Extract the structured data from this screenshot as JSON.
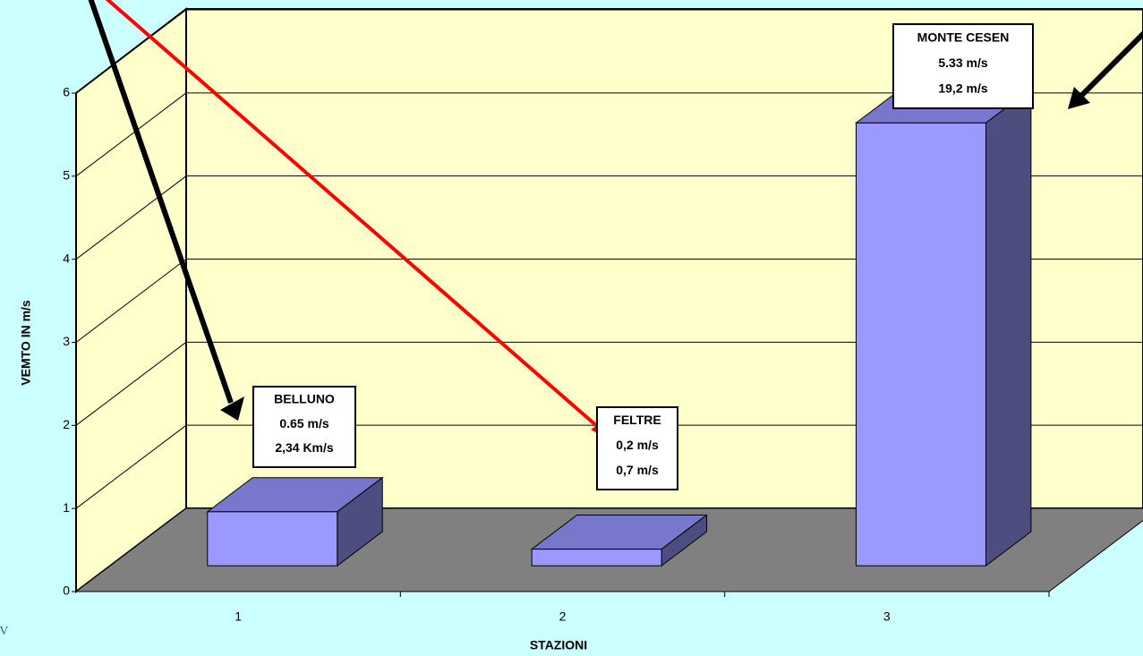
{
  "chart_data": {
    "type": "bar3d",
    "categories": [
      "1",
      "2",
      "3"
    ],
    "values": [
      0.65,
      0.2,
      5.33
    ],
    "color": "#9999ff",
    "ylim": [
      0,
      6
    ],
    "yticks": [
      0,
      1,
      2,
      3,
      4,
      5,
      6
    ],
    "grid": true,
    "y_label": "VEMTO IN m/s",
    "x_label": "STAZIONI",
    "annotations": [
      {
        "lines": [
          "BELLUNO",
          "0.65 m/s",
          "2,34 Km/s"
        ]
      },
      {
        "lines": [
          "FELTRE",
          "0,2 m/s",
          "0,7 m/s"
        ]
      },
      {
        "lines": [
          "MONTE CESEN",
          "5.33 m/s",
          "19,2 m/s"
        ]
      }
    ]
  },
  "logo": "LV"
}
